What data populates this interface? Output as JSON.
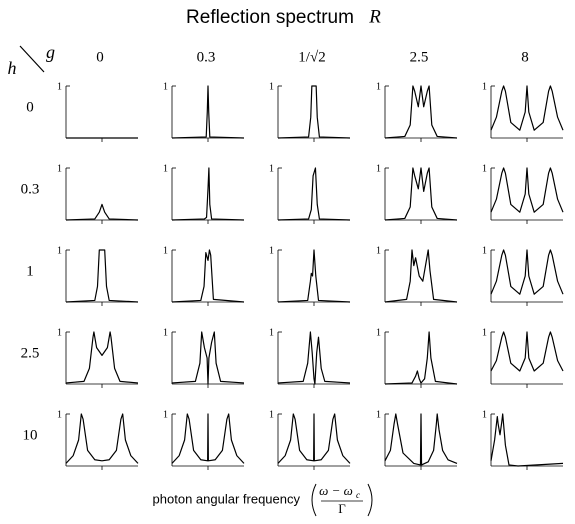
{
  "chart_data": {
    "type": "line",
    "title": "Reflection spectrum",
    "title_symbol": "R",
    "column_axis_symbol": "g",
    "row_axis_symbol": "h",
    "columns": [
      "0",
      "0.3",
      "1/√2",
      "2.5",
      "8"
    ],
    "rows": [
      "0",
      "0.3",
      "1",
      "2.5",
      "10"
    ],
    "xlabel": "photon angular frequency",
    "xlabel_numerator": "ω − ω",
    "xlabel_numerator_subscript": "c",
    "xlabel_denominator": "Γ",
    "xlim": [
      -20,
      20
    ],
    "ylim": [
      0,
      1
    ],
    "xticks": [
      0
    ],
    "yticks": [
      1
    ],
    "color": "#000000",
    "panels": [
      [
        {
          "x": [
            -20,
            20
          ],
          "values": [
            0,
            0
          ]
        },
        {
          "x": [
            -20,
            -1,
            -0.4,
            0,
            0.4,
            1,
            20
          ],
          "values": [
            0,
            0.02,
            0.5,
            1,
            0.5,
            0.02,
            0
          ]
        },
        {
          "x": [
            -20,
            -3,
            -1.8,
            -1.2,
            1.2,
            1.8,
            3,
            20
          ],
          "values": [
            0,
            0.02,
            0.4,
            1,
            1,
            0.4,
            0.02,
            0
          ]
        },
        {
          "x": [
            -20,
            -9,
            -6,
            -4.5,
            -3.5,
            -1.5,
            0,
            1.5,
            3.5,
            4.5,
            6,
            9,
            20
          ],
          "values": [
            0,
            0.03,
            0.25,
            1,
            0.9,
            0.6,
            1,
            0.6,
            0.9,
            1,
            0.25,
            0.03,
            0
          ]
        },
        {
          "x": [
            -20,
            -17,
            -14,
            -13,
            -12,
            -9,
            -4,
            -1,
            0,
            1,
            4,
            9,
            12,
            13,
            14,
            17,
            20
          ],
          "values": [
            0.15,
            0.4,
            0.9,
            1,
            0.9,
            0.3,
            0.15,
            0.5,
            1,
            0.5,
            0.15,
            0.3,
            0.9,
            1,
            0.9,
            0.4,
            0.15
          ]
        }
      ],
      [
        {
          "x": [
            -20,
            -4,
            -1.5,
            0,
            1.5,
            4,
            20
          ],
          "values": [
            0,
            0.02,
            0.15,
            0.3,
            0.15,
            0.02,
            0
          ]
        },
        {
          "x": [
            -20,
            -2,
            -0.8,
            0,
            0.5,
            1,
            2,
            20
          ],
          "values": [
            0,
            0.02,
            0.05,
            0.6,
            1,
            0.3,
            0.02,
            0
          ]
        },
        {
          "x": [
            -20,
            -3,
            -1.5,
            -0.5,
            0.8,
            1.8,
            3,
            20
          ],
          "values": [
            0,
            0.02,
            0.2,
            0.85,
            1,
            0.3,
            0.02,
            0
          ]
        },
        {
          "x": [
            -20,
            -9,
            -6,
            -4.5,
            -3.5,
            -1.5,
            0,
            1.5,
            3.5,
            4.5,
            6,
            9,
            20
          ],
          "values": [
            0,
            0.03,
            0.25,
            1,
            0.85,
            0.6,
            1,
            0.55,
            0.9,
            1,
            0.25,
            0.03,
            0
          ]
        },
        {
          "x": [
            -20,
            -17,
            -14,
            -13,
            -12,
            -9,
            -4,
            -1,
            0,
            1,
            4,
            9,
            12,
            13,
            14,
            17,
            20
          ],
          "values": [
            0.15,
            0.4,
            0.9,
            1,
            0.9,
            0.3,
            0.15,
            0.5,
            1,
            0.5,
            0.15,
            0.3,
            0.9,
            1,
            0.9,
            0.4,
            0.15
          ]
        }
      ],
      [
        {
          "x": [
            -20,
            -4,
            -2.5,
            -1.5,
            1.5,
            2.5,
            4,
            20
          ],
          "values": [
            0,
            0.03,
            0.3,
            1,
            1,
            0.3,
            0.03,
            0
          ]
        },
        {
          "x": [
            -20,
            -4,
            -2.2,
            -1.2,
            0,
            0.8,
            1.5,
            3,
            20
          ],
          "values": [
            0,
            0.03,
            0.3,
            0.95,
            0.8,
            1,
            0.9,
            0.05,
            0
          ]
        },
        {
          "x": [
            -20,
            -3.5,
            -2,
            -1.5,
            -0.8,
            0,
            1,
            2.5,
            20
          ],
          "values": [
            0,
            0.03,
            0.4,
            0.55,
            0.5,
            1,
            0.5,
            0.03,
            0
          ]
        },
        {
          "x": [
            -20,
            -8,
            -6,
            -5,
            -4,
            -3,
            -1,
            1,
            3,
            4,
            5,
            7,
            20
          ],
          "values": [
            0,
            0.05,
            0.4,
            1,
            0.7,
            0.85,
            0.5,
            0.4,
            0.8,
            1,
            0.6,
            0.05,
            0
          ]
        },
        {
          "x": [
            -20,
            -17,
            -14,
            -13,
            -12,
            -9,
            -4,
            -1,
            0,
            1,
            4,
            9,
            12,
            13,
            14,
            17,
            20
          ],
          "values": [
            0.15,
            0.4,
            0.9,
            1,
            0.9,
            0.3,
            0.15,
            0.5,
            1,
            0.5,
            0.15,
            0.3,
            0.9,
            1,
            0.9,
            0.4,
            0.15
          ]
        }
      ],
      [
        {
          "x": [
            -20,
            -10,
            -7,
            -5,
            -4.5,
            -3,
            0,
            3,
            4.5,
            5,
            7,
            10,
            20
          ],
          "values": [
            0.02,
            0.05,
            0.3,
            0.9,
            1,
            0.7,
            0.55,
            0.7,
            1,
            0.9,
            0.3,
            0.05,
            0.02
          ]
        },
        {
          "x": [
            -20,
            -7,
            -4.5,
            -3.5,
            -2,
            -0.5,
            0,
            0.5,
            2,
            3.5,
            4.5,
            7,
            20
          ],
          "values": [
            0.02,
            0.05,
            0.4,
            1,
            0.7,
            0.5,
            0,
            0.5,
            0.8,
            1,
            0.4,
            0.05,
            0.02
          ]
        },
        {
          "x": [
            -20,
            -6,
            -3.5,
            -2,
            -1,
            0,
            0.5,
            1.5,
            2.5,
            4,
            6,
            20
          ],
          "values": [
            0.02,
            0.05,
            0.4,
            1,
            0.6,
            0.1,
            0,
            0.6,
            0.9,
            0.3,
            0.05,
            0.02
          ]
        },
        {
          "x": [
            -20,
            -5,
            -3,
            -2,
            -1,
            0,
            2,
            3.5,
            4.5,
            5.5,
            8,
            20
          ],
          "values": [
            0,
            0.02,
            0.15,
            0.25,
            0.1,
            0.02,
            0.1,
            0.5,
            1,
            0.5,
            0.05,
            0
          ]
        },
        {
          "x": [
            -20,
            -17,
            -14,
            -13,
            -12,
            -9,
            -4,
            -1,
            0,
            1,
            4,
            9,
            12,
            13,
            14,
            17,
            20
          ],
          "values": [
            0.25,
            0.45,
            0.9,
            1,
            0.9,
            0.4,
            0.25,
            0.5,
            1,
            0.5,
            0.25,
            0.4,
            0.9,
            1,
            0.9,
            0.45,
            0.25
          ]
        }
      ],
      [
        {
          "x": [
            -20,
            -16,
            -13,
            -11.5,
            -10.5,
            -8,
            -4,
            0,
            4,
            8,
            10.5,
            11.5,
            13,
            16,
            20
          ],
          "values": [
            0.05,
            0.2,
            0.5,
            1,
            0.9,
            0.3,
            0.12,
            0.1,
            0.12,
            0.3,
            0.9,
            1,
            0.5,
            0.2,
            0.05
          ]
        },
        {
          "x": [
            -20,
            -16,
            -13,
            -11.5,
            -10.5,
            -8,
            -4,
            -0.2,
            0,
            0.2,
            4,
            8,
            10.5,
            11.5,
            13,
            16,
            20
          ],
          "values": [
            0.05,
            0.2,
            0.5,
            1,
            0.9,
            0.3,
            0.12,
            0.1,
            1,
            0.1,
            0.12,
            0.3,
            0.9,
            1,
            0.5,
            0.2,
            0.05
          ]
        },
        {
          "x": [
            -20,
            -16,
            -13,
            -11.5,
            -10.5,
            -8,
            -4,
            -0.2,
            0,
            0.2,
            4,
            8,
            10.5,
            11.5,
            13,
            16,
            20
          ],
          "values": [
            0.05,
            0.2,
            0.5,
            1,
            0.9,
            0.3,
            0.12,
            0.1,
            1,
            0.1,
            0.12,
            0.3,
            0.9,
            1,
            0.5,
            0.2,
            0.05
          ]
        },
        {
          "x": [
            -20,
            -17,
            -15,
            -14,
            -13,
            -10,
            -4,
            -0.3,
            0,
            0.3,
            4,
            7,
            8.5,
            9,
            10,
            12,
            15,
            20
          ],
          "values": [
            0.1,
            0.3,
            0.8,
            1,
            0.8,
            0.25,
            0.05,
            0.02,
            1,
            0.02,
            0.08,
            0.3,
            0.8,
            1,
            0.7,
            0.3,
            0.12,
            0.05
          ]
        },
        {
          "x": [
            -20,
            -18,
            -16.5,
            -16,
            -15,
            -14,
            -13.5,
            -12,
            -10,
            -5,
            20
          ],
          "values": [
            0.1,
            0.5,
            0.95,
            0.8,
            0.6,
            0.85,
            1,
            0.4,
            0.02,
            0,
            0.05
          ]
        }
      ]
    ]
  }
}
